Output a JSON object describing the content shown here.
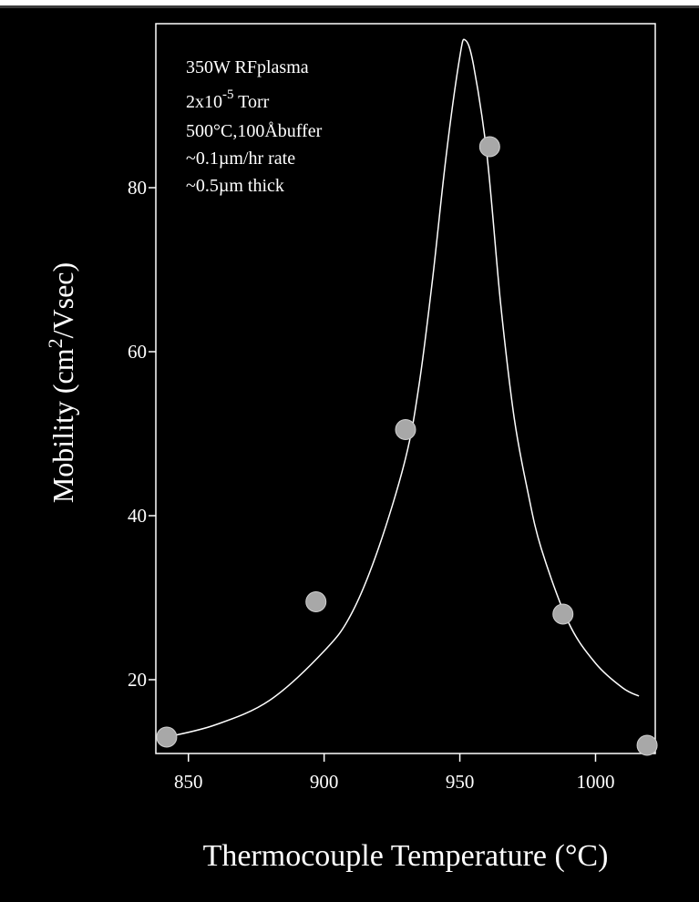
{
  "chart_data": {
    "type": "scatter",
    "title": "",
    "xlabel": "Thermocouple Temperature (°C)",
    "ylabel_main": "Mobility (cm",
    "ylabel_sup": "2",
    "ylabel_tail": "/Vsec)",
    "xlim": [
      838,
      1022
    ],
    "ylim": [
      11,
      100
    ],
    "x_ticks": [
      850,
      900,
      950,
      1000
    ],
    "y_ticks": [
      20,
      40,
      60,
      80
    ],
    "x_tick_labels": [
      "850",
      "900",
      "950",
      "1000"
    ],
    "y_tick_labels": [
      "20",
      "40",
      "60",
      "80"
    ],
    "grid": false,
    "annotation": {
      "line1": "350W RFplasma",
      "line2_pre": "2x10",
      "line2_sup": "-5",
      "line2_post": " Torr",
      "line3": "500°C,100Åbuffer",
      "line4": "~0.1µm/hr rate",
      "line5": "~0.5µm thick"
    },
    "series": [
      {
        "kind": "points",
        "x": [
          842,
          897,
          930,
          961,
          988,
          1019
        ],
        "y": [
          13,
          29.5,
          50.5,
          85,
          28,
          12
        ]
      },
      {
        "kind": "fit-curve",
        "x": [
          842,
          860,
          880,
          900,
          910,
          920,
          930,
          935,
          940,
          945,
          950,
          952,
          955,
          960,
          965,
          970,
          975,
          980,
          990,
          1000,
          1010,
          1016
        ],
        "y": [
          13,
          14.5,
          17.5,
          23.5,
          28,
          36,
          47,
          56,
          69,
          84,
          96,
          98,
          95,
          84,
          66,
          52,
          43,
          36,
          27,
          22,
          19,
          18
        ]
      }
    ],
    "colors": {
      "background": "#000000",
      "foreground": "#ffffff",
      "marker_fill": "#a8a8a8"
    }
  }
}
